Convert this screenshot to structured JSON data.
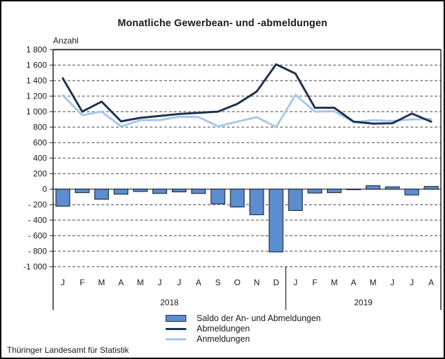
{
  "title": "Monatliche Gewerbean- und -abmeldungen",
  "footer": "Thüringer Landesamt für Statistik",
  "legend": [
    {
      "label": "Saldo der An- und Abmeldungen"
    },
    {
      "label": "Abmeldungen"
    },
    {
      "label": "Anmeldungen"
    }
  ],
  "colors": {
    "bar_fill": "#5b8dd0",
    "bar_border": "#22304a",
    "line_dark": "#1e3150",
    "line_light": "#a6c8ea",
    "grid": "#7f7f7f",
    "frame": "#4d4d4d",
    "axis": "#1a1a1a",
    "text": "#1a1a1a"
  },
  "chart_data": {
    "type": "combo",
    "title": "Monatliche Gewerbean- und -abmeldungen",
    "ylabel": "Anzahl",
    "xlabel": "",
    "ylim": [
      -1000,
      1800
    ],
    "ytick_step": 200,
    "ytick_labels": [
      "1 800",
      "1 600",
      "1 400",
      "1 200",
      "1 000",
      "800",
      "600",
      "400",
      "200",
      "0",
      "- 200",
      "- 400",
      "- 600",
      "- 800",
      "-1 000"
    ],
    "grid": true,
    "legend_position": "bottom",
    "categories": [
      "J",
      "F",
      "M",
      "A",
      "M",
      "J",
      "J",
      "A",
      "S",
      "O",
      "N",
      "D",
      "J",
      "F",
      "M",
      "A",
      "M",
      "J",
      "J",
      "A"
    ],
    "year_groups": [
      {
        "label": "2018",
        "span": 12
      },
      {
        "label": "2019",
        "span": 8
      }
    ],
    "series": [
      {
        "name": "Saldo der An- und Abmeldungen",
        "type": "bar",
        "color": "#5b8dd0",
        "values": [
          -220,
          -45,
          -130,
          -65,
          -30,
          -55,
          -35,
          -55,
          -190,
          -230,
          -330,
          -810,
          -275,
          -50,
          -45,
          -5,
          45,
          30,
          -75,
          35
        ]
      },
      {
        "name": "Abmeldungen",
        "type": "line",
        "color": "#1e3150",
        "values": [
          1430,
          1000,
          1130,
          875,
          920,
          945,
          970,
          985,
          1000,
          1100,
          1260,
          1610,
          1490,
          1050,
          1050,
          870,
          845,
          850,
          975,
          870
        ]
      },
      {
        "name": "Anmeldungen",
        "type": "line",
        "color": "#a6c8ea",
        "values": [
          1210,
          955,
          1000,
          810,
          890,
          890,
          935,
          930,
          810,
          870,
          930,
          800,
          1215,
          1000,
          1005,
          865,
          890,
          880,
          900,
          905
        ]
      }
    ]
  }
}
